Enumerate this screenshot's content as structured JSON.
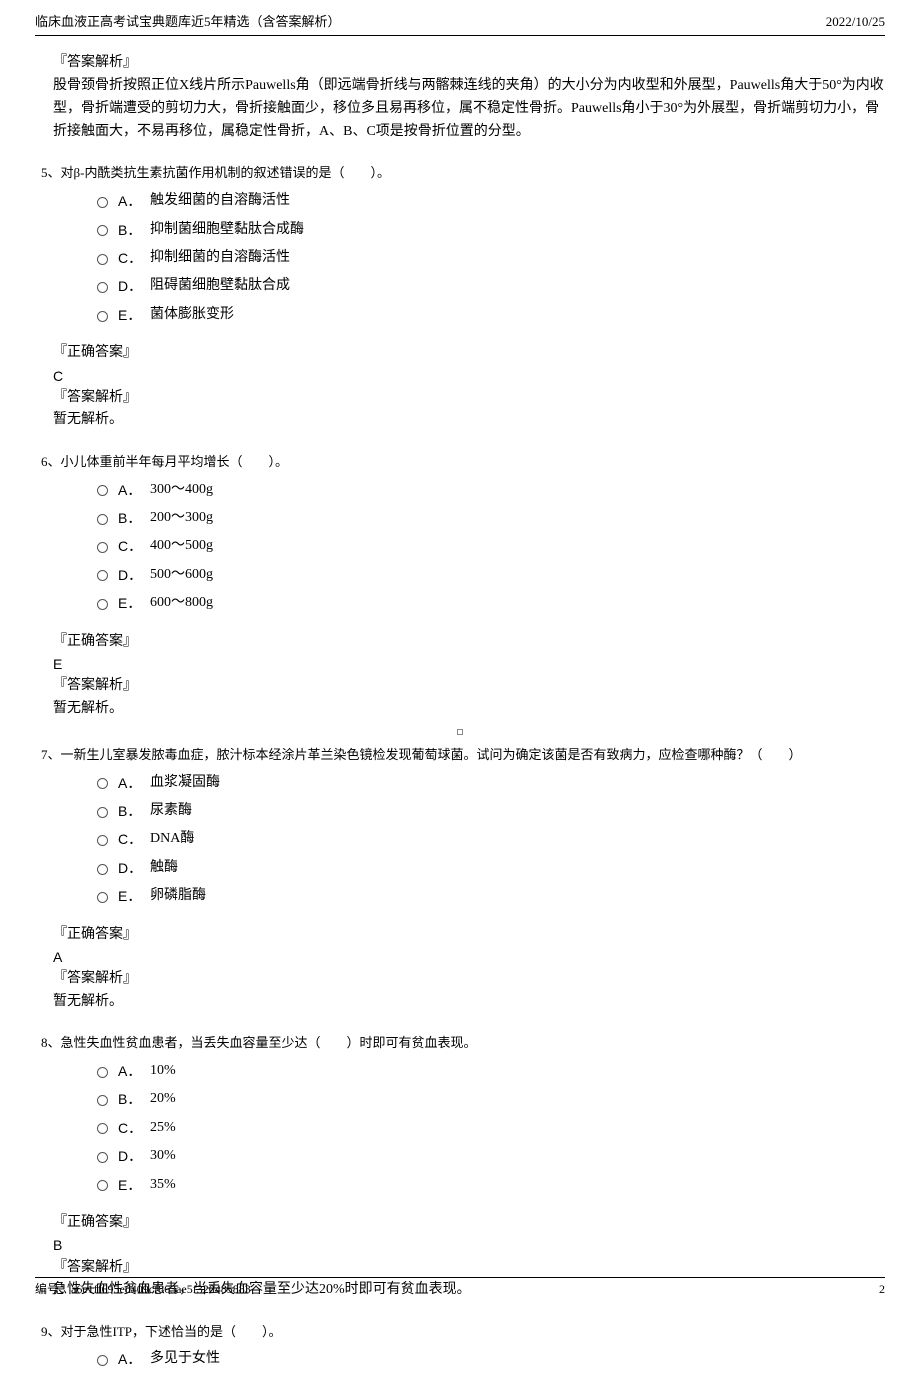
{
  "header": {
    "title": "临床血液正高考试宝典题库近5年精选（含答案解析）",
    "date": "2022/10/25"
  },
  "intro_explanation": {
    "label": "『答案解析』",
    "text": "股骨颈骨折按照正位X线片所示Pauwells角（即远端骨折线与两髂棘连线的夹角）的大小分为内收型和外展型，Pauwells角大于50°为内收型，骨折端遭受的剪切力大，骨折接触面少，移位多且易再移位，属不稳定性骨折。Pauwells角小于30°为外展型，骨折端剪切力小，骨折接触面大，不易再移位，属稳定性骨折，A、B、C项是按骨折位置的分型。"
  },
  "questions": [
    {
      "number": "5、",
      "stem": "对β-内酰类抗生素抗菌作用机制的叙述错误的是（　　）。",
      "options": [
        {
          "label": "A．",
          "text": "触发细菌的自溶酶活性"
        },
        {
          "label": "B．",
          "text": "抑制菌细胞壁黏肽合成酶"
        },
        {
          "label": "C．",
          "text": "抑制细菌的自溶酶活性"
        },
        {
          "label": "D．",
          "text": "阻碍菌细胞壁黏肽合成"
        },
        {
          "label": "E．",
          "text": "菌体膨胀变形"
        }
      ],
      "correct_label": "『正确答案』",
      "correct": "C",
      "explanation_label": "『答案解析』",
      "explanation": "暂无解析。"
    },
    {
      "number": "6、",
      "stem": "小儿体重前半年每月平均增长（　　）。",
      "options": [
        {
          "label": "A．",
          "text": "300～400g"
        },
        {
          "label": "B．",
          "text": "200～300g"
        },
        {
          "label": "C．",
          "text": "400～500g"
        },
        {
          "label": "D．",
          "text": "500～600g"
        },
        {
          "label": "E．",
          "text": "600～800g"
        }
      ],
      "correct_label": "『正确答案』",
      "correct": "E",
      "explanation_label": "『答案解析』",
      "explanation": "暂无解析。"
    },
    {
      "number": "7、",
      "stem": "一新生儿室暴发脓毒血症，脓汁标本经涂片革兰染色镜检发现葡萄球菌。试问为确定该菌是否有致病力，应检查哪种酶？（　　）",
      "options": [
        {
          "label": "A．",
          "text": "血浆凝固酶"
        },
        {
          "label": "B．",
          "text": "尿素酶"
        },
        {
          "label": "C．",
          "text": "DNA酶"
        },
        {
          "label": "D．",
          "text": "触酶"
        },
        {
          "label": "E．",
          "text": "卵磷脂酶"
        }
      ],
      "correct_label": "『正确答案』",
      "correct": "A",
      "explanation_label": "『答案解析』",
      "explanation": "暂无解析。"
    },
    {
      "number": "8、",
      "stem": "急性失血性贫血患者，当丢失血容量至少达（　　）时即可有贫血表现。",
      "options": [
        {
          "label": "A．",
          "text": "10%"
        },
        {
          "label": "B．",
          "text": "20%"
        },
        {
          "label": "C．",
          "text": "25%"
        },
        {
          "label": "D．",
          "text": "30%"
        },
        {
          "label": "E．",
          "text": "35%"
        }
      ],
      "correct_label": "『正确答案』",
      "correct": "B",
      "explanation_label": "『答案解析』",
      "explanation": "急性失血性贫血患者，当丢失血容量至少达20%时即可有贫血表现。"
    },
    {
      "number": "9、",
      "stem": "对于急性ITP，下述恰当的是（　　）。",
      "options": [
        {
          "label": "A．",
          "text": "多见于女性"
        }
      ],
      "correct_label": "",
      "correct": "",
      "explanation_label": "",
      "explanation": ""
    }
  ],
  "center_marker": "■",
  "footer": {
    "id_label": "编号：",
    "id_value": "a6e1ff695ed409cf863ae5f320485883",
    "page": "2"
  }
}
